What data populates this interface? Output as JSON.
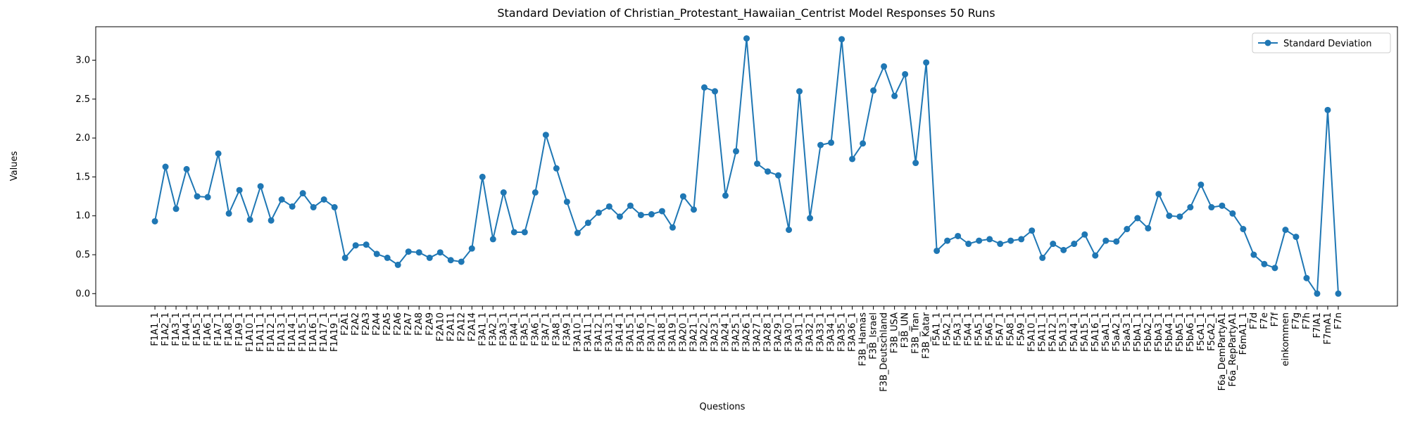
{
  "chart_data": {
    "type": "line",
    "title": "Standard Deviation of Christian_Protestant_Hawaiian_Centrist Model Responses 50 Runs",
    "x_label": "Questions",
    "y_label": "Values",
    "categories": [
      "F1A1_1",
      "F1A2_1",
      "F1A3_1",
      "F1A4_1",
      "F1A5_1",
      "F1A6_1",
      "F1A7_1",
      "F1A8_1",
      "F1A9_1",
      "F1A10_1",
      "F1A11_1",
      "F1A12_1",
      "F1A13_1",
      "F1A14_1",
      "F1A15_1",
      "F1A16_1",
      "F1A17_1",
      "F1A19_1",
      "F2A1",
      "F2A2",
      "F2A3",
      "F2A4",
      "F2A5",
      "F2A6",
      "F2A7",
      "F2A8",
      "F2A9",
      "F2A10",
      "F2A11",
      "F2A12",
      "F2A14",
      "F3A1_1",
      "F3A2_1",
      "F3A3_1",
      "F3A4_1",
      "F3A5_1",
      "F3A6_1",
      "F3A7_1",
      "F3A8_1",
      "F3A9_1",
      "F3A10_1",
      "F3A11_1",
      "F3A12_1",
      "F3A13_1",
      "F3A14_1",
      "F3A15_1",
      "F3A16_1",
      "F3A17_1",
      "F3A18_1",
      "F3A19_1",
      "F3A20_1",
      "F3A21_1",
      "F3A22_1",
      "F3A23_1",
      "F3A24_1",
      "F3A25_1",
      "F3A26_1",
      "F3A27_1",
      "F3A28_1",
      "F3A29_1",
      "F3A30_1",
      "F3A31_1",
      "F3A32_1",
      "F3A33_1",
      "F3A34_1",
      "F3A35_1",
      "F3A36_1",
      "F3B_Hamas",
      "F3B_Israel",
      "F3B_Deutschland",
      "F3B_USA",
      "F3B_UN",
      "F3B_Tran",
      "F3B_Katar",
      "F5A1_1",
      "F5A2_1",
      "F5A3_1",
      "F5A4_1",
      "F5A5_1",
      "F5A6_1",
      "F5A7_1",
      "F5A8_1",
      "F5A9_1",
      "F5A10_1",
      "F5A11_1",
      "F5A12_1",
      "F5A13_1",
      "F5A14_1",
      "F5A15_1",
      "F5A16_1",
      "F5aA1_1",
      "F5aA2_1",
      "F5aA3_1",
      "F5bA1_1",
      "F5bA2_1",
      "F5bA3_1",
      "F5bA4_1",
      "F5bA5_1",
      "F5bA6_1",
      "F5cA1_1",
      "F5cA2_1",
      "F6a_DemPartyA1",
      "F6a_RepPartyA1",
      "F6mA1_1",
      "F7d",
      "F7e",
      "F7f",
      "einkommen",
      "F7g",
      "F7h",
      "F7lA1",
      "F7mA1",
      "F7n"
    ],
    "series": [
      {
        "name": "Standard Deviation",
        "color": "#1f77b4",
        "values": [
          0.93,
          1.63,
          1.09,
          1.6,
          1.25,
          1.24,
          1.8,
          1.03,
          1.33,
          0.95,
          1.38,
          0.94,
          1.21,
          1.12,
          1.29,
          1.11,
          1.21,
          1.11,
          0.46,
          0.62,
          0.63,
          0.51,
          0.46,
          0.37,
          0.54,
          0.53,
          0.46,
          0.53,
          0.43,
          0.41,
          0.58,
          1.5,
          0.7,
          1.3,
          0.79,
          0.79,
          1.3,
          2.04,
          1.61,
          1.18,
          0.78,
          0.91,
          1.04,
          1.12,
          0.99,
          1.13,
          1.01,
          1.02,
          1.06,
          0.85,
          1.25,
          1.08,
          2.65,
          2.6,
          1.26,
          1.83,
          3.28,
          1.67,
          1.57,
          1.52,
          0.82,
          2.6,
          0.97,
          1.91,
          1.94,
          3.27,
          1.73,
          1.93,
          2.61,
          2.92,
          2.54,
          2.82,
          1.68,
          2.97,
          0.55,
          0.68,
          0.74,
          0.64,
          0.68,
          0.7,
          0.64,
          0.68,
          0.7,
          0.81,
          0.46,
          0.64,
          0.56,
          0.64,
          0.76,
          0.49,
          0.68,
          0.67,
          0.83,
          0.97,
          0.84,
          1.28,
          1.0,
          0.99,
          1.11,
          1.4,
          1.11,
          1.13,
          1.03,
          0.83,
          0.5,
          0.38,
          0.33,
          0.82,
          0.73,
          0.2,
          0.0,
          2.36,
          0.0
        ]
      }
    ],
    "ylim": [
      -0.16,
      3.43
    ],
    "yticks": [
      {
        "value": 0,
        "label": "0.0"
      },
      {
        "value": 0.5,
        "label": "0.5"
      },
      {
        "value": 1,
        "label": "1.0"
      },
      {
        "value": 1.5,
        "label": "1.5"
      },
      {
        "value": 2,
        "label": "2.0"
      },
      {
        "value": 2.5,
        "label": "2.5"
      },
      {
        "value": 3,
        "label": "3.0"
      }
    ],
    "legend": "upper right"
  }
}
